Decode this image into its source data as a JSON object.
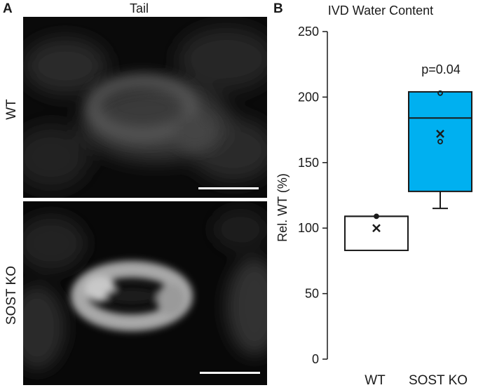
{
  "panel_a": {
    "letter": "A",
    "column_title": "Tail",
    "rows": [
      {
        "label": "WT"
      },
      {
        "label": "SOST KO"
      }
    ]
  },
  "panel_b": {
    "letter": "B"
  },
  "chart_data": {
    "type": "box",
    "title": "IVD Water Content",
    "xlabel": "",
    "ylabel": "Rel. WT (%)",
    "ylim": [
      0,
      250
    ],
    "yticks": [
      0,
      50,
      100,
      150,
      200,
      250
    ],
    "categories": [
      "WT",
      "SOST KO"
    ],
    "annotation": "p=0.04",
    "boxes": [
      {
        "category": "WT",
        "q1": 83,
        "median": 109,
        "q3": 109,
        "whisker_low": 83,
        "whisker_high": 109,
        "mean": 100,
        "points": [
          109
        ],
        "fill": "#ffffff"
      },
      {
        "category": "SOST KO",
        "q1": 128,
        "median": 184,
        "q3": 204,
        "whisker_low": 115,
        "whisker_high": 204,
        "mean": 172,
        "points": [
          166,
          203
        ],
        "fill": "#00b0f0"
      }
    ]
  }
}
